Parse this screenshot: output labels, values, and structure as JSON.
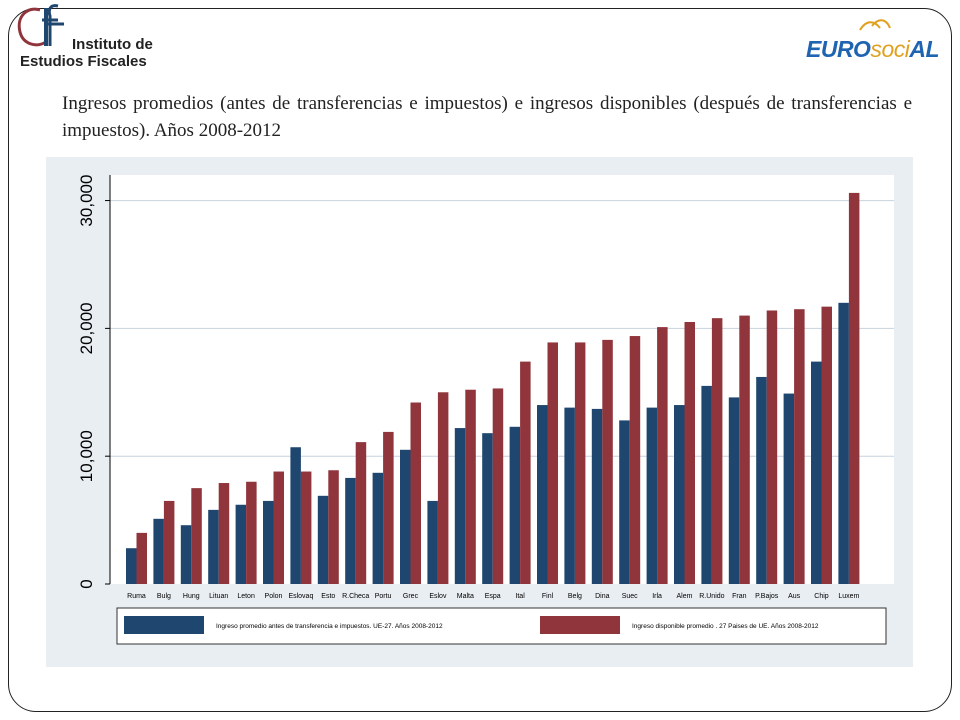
{
  "logos": {
    "ief": {
      "mark": "IEF",
      "line1": "Instituto de",
      "line2": "Estudios Fiscales"
    },
    "eurosocial": {
      "part1": "EURO",
      "part2": "soci",
      "part3": "AL"
    }
  },
  "title": "Ingresos promedios (antes de transferencias e impuestos) e ingresos disponibles (después de transferencias e impuestos). Años 2008-2012",
  "colors": {
    "series1": "#1f466e",
    "series2": "#8f353b",
    "panel": "#e9eef2",
    "grid": "#c7d3dd"
  },
  "chart_data": {
    "type": "bar",
    "categories": [
      "Ruma",
      "Bulg",
      "Hung",
      "Lituan",
      "Leton",
      "Polon",
      "Eslovaq",
      "Esto",
      "R.Checa",
      "Portu",
      "Grec",
      "Eslov",
      "Malta",
      "Espa",
      "Ital",
      "Finl",
      "Belg",
      "Dina",
      "Suec",
      "Irla",
      "Alem",
      "R.Unido",
      "Fran",
      "P.Bajos",
      "Aus",
      "Chip",
      "Luxem"
    ],
    "series": [
      {
        "name": "Ingreso promedio antes de transferencia e impuestos. UE-27. Años 2008-2012",
        "values": [
          2800,
          5100,
          4600,
          5800,
          6200,
          6500,
          10700,
          6900,
          8300,
          8700,
          10500,
          6500,
          12200,
          11800,
          12300,
          14000,
          13800,
          13700,
          12800,
          13800,
          14000,
          15500,
          14600,
          16200,
          14900,
          17400,
          22000
        ]
      },
      {
        "name": "Ingreso disponible promedio . 27 Paises de UE. Años 2008-2012",
        "values": [
          4000,
          6500,
          7500,
          7900,
          8000,
          8800,
          8800,
          8900,
          11100,
          11900,
          14200,
          15000,
          15200,
          15300,
          17400,
          18900,
          18900,
          19100,
          19400,
          20100,
          20500,
          20800,
          21000,
          21400,
          21500,
          21700,
          30600
        ]
      }
    ],
    "yticks": [
      0,
      10000,
      20000,
      30000
    ],
    "ytick_labels": [
      "0",
      "10,000",
      "20,000",
      "30,000"
    ],
    "ylim": [
      0,
      32000
    ],
    "grid": true,
    "legend_position": "bottom"
  }
}
